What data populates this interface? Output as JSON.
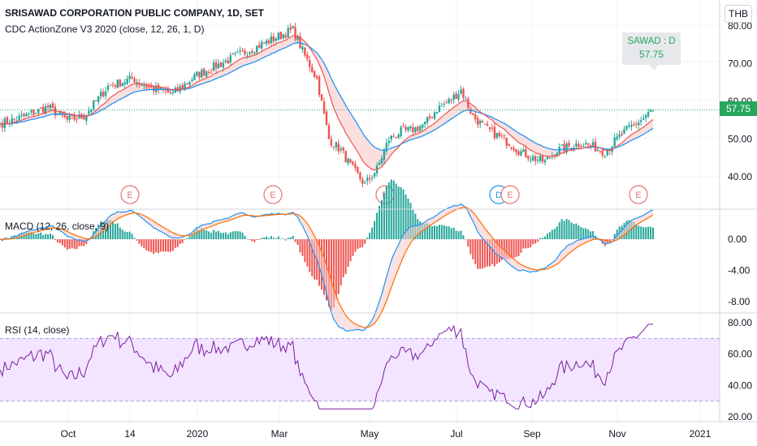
{
  "header": {
    "title": "SRISAWAD CORPORATION PUBLIC COMPANY, 1D, SET",
    "indicator": "CDC ActionZone V3 2020 (close, 12, 26, 1, D)",
    "currency": "THB"
  },
  "tooltip": {
    "symbol": "SAWAD : D",
    "price": "57.75"
  },
  "colors": {
    "up": "#26a69a",
    "down": "#ef5350",
    "ema_fast": "#ef5350",
    "ema_slow": "#2196f3",
    "macd_line": "#2196f3",
    "signal_line": "#ff6d00",
    "rsi_line": "#7b1fa2",
    "rsi_band": "#f3e5ff",
    "event": "#e57373",
    "last_price": "#26a65b"
  },
  "chart_data": [
    {
      "type": "candlestick",
      "name": "price",
      "last_price": "57.75",
      "ylim": [
        36,
        82
      ],
      "y_ticks": [
        "40.00",
        "50.00",
        "60.00",
        "70.00",
        "80.00"
      ],
      "x_ticks": [
        "Oct",
        "14",
        "2020",
        "Mar",
        "May",
        "Jul",
        "Sep",
        "Nov",
        "2021"
      ],
      "keypoints": [
        [
          0,
          54
        ],
        [
          10,
          56
        ],
        [
          20,
          58.5
        ],
        [
          28,
          55
        ],
        [
          35,
          56
        ],
        [
          45,
          64
        ],
        [
          55,
          66
        ],
        [
          63,
          63.5
        ],
        [
          72,
          62
        ],
        [
          82,
          67
        ],
        [
          92,
          70
        ],
        [
          102,
          73
        ],
        [
          112,
          76
        ],
        [
          122,
          79
        ],
        [
          127,
          72
        ],
        [
          132,
          66
        ],
        [
          137,
          50
        ],
        [
          142,
          47
        ],
        [
          147,
          42
        ],
        [
          152,
          38
        ],
        [
          157,
          42
        ],
        [
          162,
          50
        ],
        [
          167,
          52
        ],
        [
          172,
          52.5
        ],
        [
          177,
          54
        ],
        [
          182,
          58
        ],
        [
          187,
          60
        ],
        [
          192,
          63
        ],
        [
          197,
          56
        ],
        [
          202,
          53
        ],
        [
          207,
          51
        ],
        [
          212,
          49
        ],
        [
          217,
          46.5
        ],
        [
          222,
          45
        ],
        [
          227,
          44
        ],
        [
          232,
          47
        ],
        [
          237,
          48
        ],
        [
          242,
          49
        ],
        [
          247,
          48
        ],
        [
          252,
          46.5
        ],
        [
          257,
          50
        ],
        [
          262,
          53
        ],
        [
          267,
          55
        ],
        [
          272,
          57.75
        ]
      ],
      "events": [
        "E",
        "E",
        "E",
        "D",
        "E",
        "E"
      ]
    },
    {
      "type": "line",
      "name": "MACD (12, 26, close, 9)",
      "ylim": [
        -9,
        3.5
      ],
      "y_ticks": [
        "-8.00",
        "-4.00",
        "0.00"
      ]
    },
    {
      "type": "line",
      "name": "RSI (14, close)",
      "ylim": [
        20,
        85
      ],
      "y_ticks": [
        "20.00",
        "40.00",
        "60.00",
        "80.00"
      ]
    }
  ]
}
